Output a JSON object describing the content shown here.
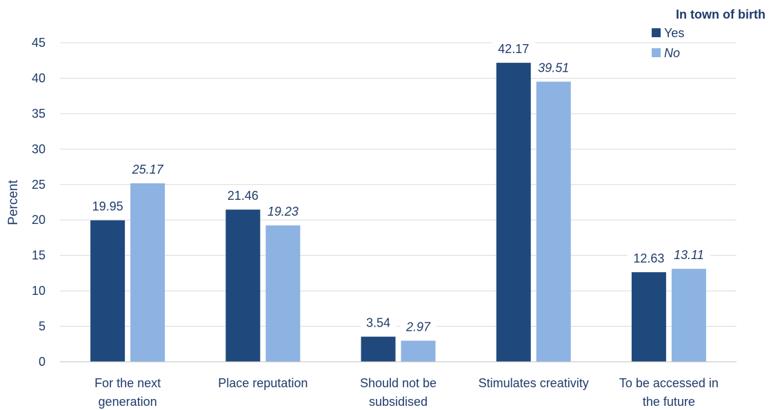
{
  "chart_data": {
    "type": "bar",
    "categories": [
      [
        "For the next",
        "generation"
      ],
      [
        "Place reputation"
      ],
      [
        "Should not be",
        "subsidised"
      ],
      [
        "Stimulates creativity"
      ],
      [
        "To be accessed in",
        "the future"
      ]
    ],
    "series": [
      {
        "name": "Yes",
        "values": [
          19.95,
          21.46,
          3.54,
          42.17,
          12.63
        ],
        "labels": [
          "19.95",
          "21.46",
          "3.54",
          "42.17",
          "12.63"
        ],
        "color": "#1f497d",
        "italic": false
      },
      {
        "name": "No",
        "values": [
          25.17,
          19.23,
          2.97,
          39.51,
          13.11
        ],
        "labels": [
          "25.17",
          "19.23",
          "2.97",
          "39.51",
          "13.11"
        ],
        "color": "#8db3e2",
        "italic": true
      }
    ],
    "ylabel": "Percent",
    "ylim": [
      0,
      45
    ],
    "yticks": [
      0,
      5,
      10,
      15,
      20,
      25,
      30,
      35,
      40,
      45
    ],
    "legend_title": "In town of birth",
    "legend_position": "top-right",
    "grid": true
  }
}
